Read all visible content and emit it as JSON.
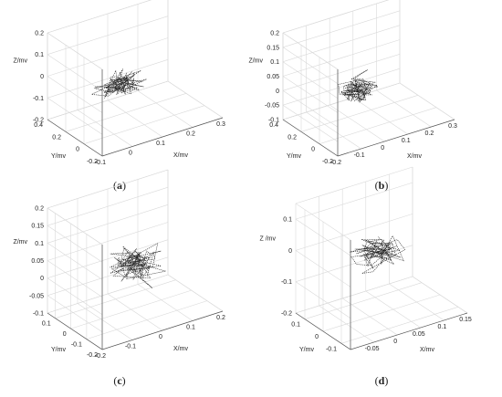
{
  "chart_data": [
    {
      "type": "line3d",
      "caption_letter": "a",
      "xlabel": "X/mv",
      "ylabel": "Y/mv",
      "zlabel": "Z/mv",
      "x_ticks": [
        "-0.1",
        "0",
        "0.1",
        "0.2",
        "0.3"
      ],
      "y_ticks": [
        "-0.2",
        "0",
        "0.2",
        "0.4"
      ],
      "z_ticks": [
        "-0.2",
        "-0.1",
        "0",
        "0.1",
        "0.2"
      ],
      "xlim": [
        -0.1,
        0.3
      ],
      "ylim": [
        -0.2,
        0.4
      ],
      "zlim": [
        -0.2,
        0.2
      ],
      "trajectory_center": [
        0.05,
        0.1,
        -0.02
      ],
      "trajectory_spread": [
        0.1,
        0.15,
        0.07
      ],
      "grid": true
    },
    {
      "type": "line3d",
      "caption_letter": "b",
      "xlabel": "X/mv",
      "ylabel": "Y/mv",
      "zlabel": "Z/mv",
      "x_ticks": [
        "-0.2",
        "-0.1",
        "0",
        "0.1",
        "0.2",
        "0.3"
      ],
      "y_ticks": [
        "-0.2",
        "0",
        "0.2",
        "0.4"
      ],
      "z_ticks": [
        "-0.1",
        "-0.05",
        "0",
        "0.05",
        "0.1",
        "0.15",
        "0.2"
      ],
      "xlim": [
        -0.2,
        0.3
      ],
      "ylim": [
        -0.2,
        0.4
      ],
      "zlim": [
        -0.1,
        0.2
      ],
      "trajectory_center": [
        0.0,
        0.1,
        0.02
      ],
      "trajectory_spread": [
        0.1,
        0.15,
        0.06
      ],
      "grid": true
    },
    {
      "type": "line3d",
      "caption_letter": "c",
      "xlabel": "X/mv",
      "ylabel": "Y/mv",
      "zlabel": "Z/mv",
      "x_ticks": [
        "-0.2",
        "-0.1",
        "0",
        "0.1",
        "0.2"
      ],
      "y_ticks": [
        "-0.2",
        "-0.1",
        "0",
        "0.1"
      ],
      "z_ticks": [
        "-0.1",
        "-0.05",
        "0",
        "0.05",
        "0.1",
        "0.15",
        "0.2"
      ],
      "xlim": [
        -0.2,
        0.2
      ],
      "ylim": [
        -0.2,
        0.15
      ],
      "zlim": [
        -0.1,
        0.2
      ],
      "trajectory_center": [
        0.0,
        -0.02,
        0.04
      ],
      "trajectory_spread": [
        0.1,
        0.1,
        0.07
      ],
      "grid": true
    },
    {
      "type": "line3d",
      "caption_letter": "d",
      "xlabel": "X/mv",
      "ylabel": "Y/mv",
      "zlabel": "Z /mv",
      "x_ticks": [
        "-0.05",
        "0",
        "0.05",
        "0.1",
        "0.15"
      ],
      "y_ticks": [
        "-0.1",
        "0",
        "0.1"
      ],
      "z_ticks": [
        "-0.2",
        "-0.1",
        "0",
        "0.1"
      ],
      "xlim": [
        -0.1,
        0.15
      ],
      "ylim": [
        -0.15,
        0.15
      ],
      "zlim": [
        -0.2,
        0.15
      ],
      "trajectory_center": [
        0.02,
        0.0,
        0.0
      ],
      "trajectory_spread": [
        0.08,
        0.09,
        0.05
      ],
      "grid": true
    }
  ]
}
